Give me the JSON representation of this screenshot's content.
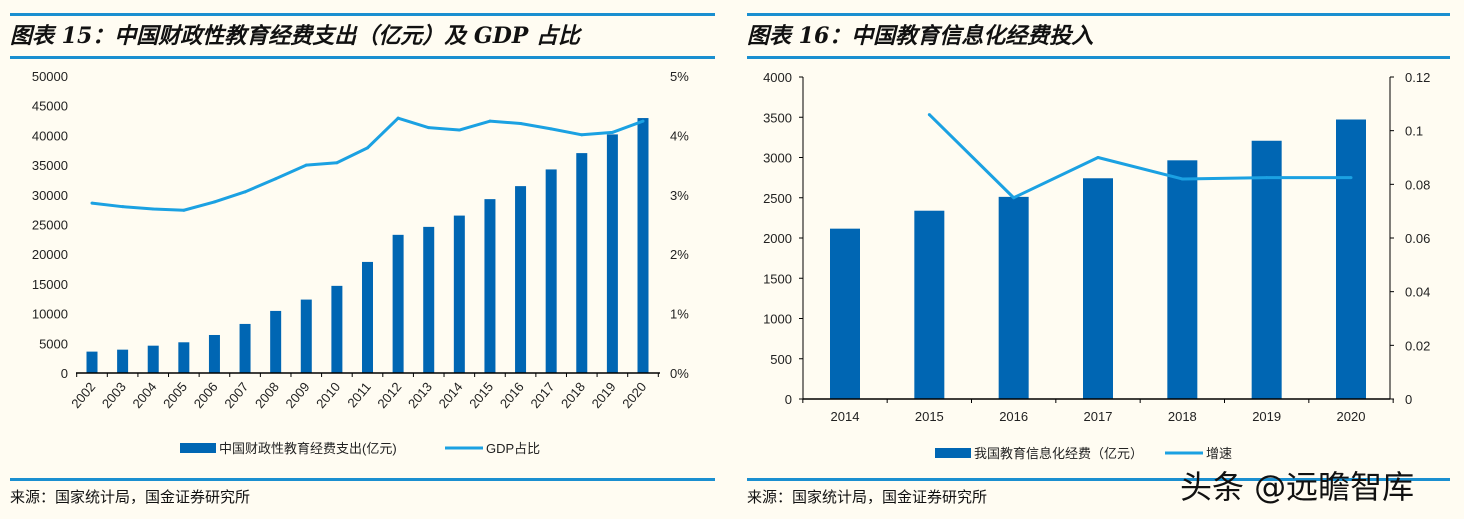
{
  "titles": {
    "left": "图表 15：中国财政性教育经费支出（亿元）及 GDP 占比",
    "right": "图表 16：中国教育信息化经费投入"
  },
  "sources": {
    "left": "来源：国家统计局，国金证券研究所",
    "right": "来源：国家统计局，国金证券研究所"
  },
  "watermark": "头条 @远瞻智库",
  "colors": {
    "bar": "#0066b3",
    "line": "#1ba1e2",
    "accent": "#1a8fd0"
  },
  "chart_data": [
    {
      "type": "bar+line",
      "title": "图表 15：中国财政性教育经费支出（亿元）及 GDP 占比",
      "categories": [
        "2002",
        "2003",
        "2004",
        "2005",
        "2006",
        "2007",
        "2008",
        "2009",
        "2010",
        "2011",
        "2012",
        "2013",
        "2014",
        "2015",
        "2016",
        "2017",
        "2018",
        "2019",
        "2020"
      ],
      "series": [
        {
          "name": "中国财政性教育经费支出(亿元)",
          "type": "bar",
          "axis": "left",
          "values": [
            3600,
            3930,
            4600,
            5170,
            6400,
            8260,
            10450,
            12360,
            14670,
            18700,
            23260,
            24600,
            26500,
            29270,
            31460,
            34270,
            37020,
            40170,
            42920
          ]
        },
        {
          "name": "GDP占比",
          "type": "line",
          "axis": "right",
          "values": [
            2.86,
            2.8,
            2.76,
            2.74,
            2.88,
            3.05,
            3.27,
            3.5,
            3.54,
            3.79,
            4.29,
            4.13,
            4.09,
            4.24,
            4.2,
            4.11,
            4.01,
            4.05,
            4.24
          ]
        }
      ],
      "ylim": [
        0,
        50000
      ],
      "yticks": [
        "0",
        "5000",
        "10000",
        "15000",
        "20000",
        "25000",
        "30000",
        "35000",
        "40000",
        "45000",
        "50000"
      ],
      "y2lim": [
        0,
        5
      ],
      "y2ticks": [
        "0%",
        "1%",
        "2%",
        "3%",
        "4%",
        "5%"
      ],
      "legend": "bottom"
    },
    {
      "type": "bar+line",
      "title": "图表 16：中国教育信息化经费投入",
      "categories": [
        "2014",
        "2015",
        "2016",
        "2017",
        "2018",
        "2019",
        "2020"
      ],
      "series": [
        {
          "name": "我国教育信息化经费（亿元）",
          "type": "bar",
          "axis": "left",
          "values": [
            2116,
            2339,
            2511,
            2742,
            2965,
            3208,
            3472
          ]
        },
        {
          "name": "增速",
          "type": "line",
          "axis": "right",
          "values": [
            null,
            0.106,
            0.075,
            0.09,
            0.082,
            0.0825,
            0.0825
          ]
        }
      ],
      "ylim": [
        0,
        4000
      ],
      "yticks": [
        "0",
        "500",
        "1000",
        "1500",
        "2000",
        "2500",
        "3000",
        "3500",
        "4000"
      ],
      "y2lim": [
        0,
        0.12
      ],
      "y2ticks": [
        "0",
        "0.02",
        "0.04",
        "0.06",
        "0.08",
        "0.1",
        "0.12"
      ],
      "legend": "bottom"
    }
  ]
}
